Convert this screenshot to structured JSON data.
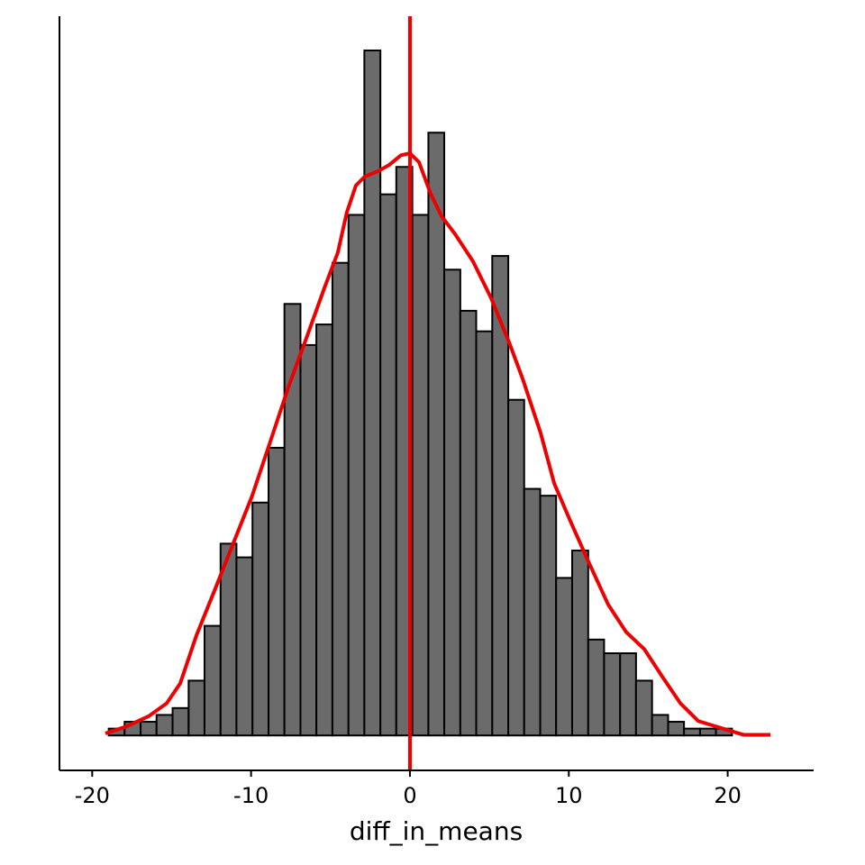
{
  "chart_data": {
    "type": "histogram",
    "x_label": "diff_in_means",
    "bins": [
      -19.97,
      -18.96,
      -17.96,
      -16.95,
      -15.95,
      -14.94,
      -13.93,
      -12.93,
      -11.92,
      -10.92,
      -9.91,
      -8.9,
      -7.9,
      -6.89,
      -5.89,
      -4.88,
      -3.87,
      -2.87,
      -1.86,
      -0.86,
      0.15,
      1.16,
      2.16,
      3.17,
      4.17,
      5.18,
      6.19,
      7.19,
      8.2,
      9.2,
      10.21,
      11.22,
      12.22,
      13.23,
      14.23,
      15.24,
      16.25,
      17.25,
      18.26,
      19.26,
      20.27,
      21.28,
      22.28,
      23.29
    ],
    "counts": [
      0,
      1,
      2,
      2,
      3,
      4,
      8,
      16,
      28,
      26,
      34,
      42,
      63,
      57,
      60,
      69,
      76,
      100,
      79,
      83,
      76,
      88,
      68,
      62,
      59,
      70,
      49,
      36,
      35,
      23,
      27,
      14,
      12,
      12,
      8,
      3,
      2,
      1,
      1,
      1,
      0,
      0,
      0
    ],
    "color": "#6b6b6b",
    "density": {
      "color": "#ee0000",
      "x": [
        -19.17,
        -17.87,
        -16.45,
        -15.31,
        -14.46,
        -13.44,
        -12.19,
        -11.06,
        -9.93,
        -8.79,
        -7.66,
        -6.52,
        -5.39,
        -4.54,
        -3.97,
        -3.4,
        -2.84,
        -1.99,
        -1.3,
        -0.57,
        0,
        0.57,
        1.3,
        1.99,
        2.84,
        3.97,
        5.1,
        6.24,
        7.09,
        8.22,
        9.08,
        10.04,
        11.17,
        12.48,
        13.61,
        14.75,
        15.88,
        17.02,
        18.15,
        19.57,
        20.99,
        22.69
      ],
      "values": [
        0.3,
        1.3,
        2.8,
        4.7,
        7.6,
        14.6,
        21.8,
        28.4,
        35.0,
        42.9,
        50.8,
        58.0,
        65.3,
        70.5,
        76.4,
        80.3,
        81.6,
        82.4,
        83.3,
        84.7,
        85.0,
        83.7,
        79.1,
        75.8,
        73.2,
        69.2,
        63.9,
        57.4,
        52.1,
        44.2,
        36.8,
        31.6,
        25.7,
        19.1,
        15.1,
        12.6,
        8.6,
        4.7,
        2.1,
        1.1,
        0.1,
        0.1
      ]
    },
    "vline": {
      "x": 0,
      "color": "#ee0000"
    },
    "xlim": [
      -22.06,
      25.41
    ],
    "xticks": [
      -20,
      -10,
      0,
      10,
      20
    ],
    "ylim": [
      -5.1,
      105
    ]
  }
}
